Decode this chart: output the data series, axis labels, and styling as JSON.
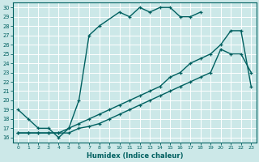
{
  "xlabel": "Humidex (Indice chaleur)",
  "bg_color": "#cce8e8",
  "grid_color": "#ffffff",
  "line_color": "#006060",
  "xlim": [
    -0.5,
    23.5
  ],
  "ylim": [
    15.5,
    30.5
  ],
  "xticks": [
    0,
    1,
    2,
    3,
    4,
    5,
    6,
    7,
    8,
    9,
    10,
    11,
    12,
    13,
    14,
    15,
    16,
    17,
    18,
    19,
    20,
    21,
    22,
    23
  ],
  "yticks": [
    16,
    17,
    18,
    19,
    20,
    21,
    22,
    23,
    24,
    25,
    26,
    27,
    28,
    29,
    30
  ],
  "line1_x": [
    0,
    1,
    2,
    3,
    4,
    5,
    6,
    7,
    8,
    10,
    11,
    12,
    13,
    14,
    15,
    16,
    17,
    18
  ],
  "line1_y": [
    19,
    18,
    17,
    17,
    16,
    17,
    20,
    27,
    28,
    29.5,
    29,
    30,
    29.5,
    30,
    30,
    29,
    29,
    29.5
  ],
  "line2_x": [
    0,
    1,
    2,
    3,
    4,
    5,
    6,
    7,
    8,
    9,
    10,
    11,
    12,
    13,
    14,
    15,
    16,
    17,
    18,
    19,
    20,
    21,
    22,
    23
  ],
  "line2_y": [
    16.5,
    16.5,
    16.5,
    16.5,
    16.5,
    16.5,
    17.0,
    17.2,
    17.5,
    18.0,
    18.5,
    19.0,
    19.5,
    20.0,
    20.5,
    21.0,
    21.5,
    22.0,
    22.5,
    23.0,
    25.5,
    25.0,
    25.0,
    23.0
  ],
  "line3_x": [
    0,
    1,
    2,
    3,
    4,
    5,
    6,
    7,
    8,
    9,
    10,
    11,
    12,
    13,
    14,
    15,
    16,
    17,
    18,
    19,
    20,
    21,
    22,
    23
  ],
  "line3_y": [
    16.5,
    16.5,
    16.5,
    16.5,
    16.5,
    17.0,
    17.5,
    18.0,
    18.5,
    19.0,
    19.5,
    20.0,
    20.5,
    21.0,
    21.5,
    22.5,
    23.0,
    24.0,
    24.5,
    25.0,
    26.0,
    27.5,
    27.5,
    21.5
  ]
}
